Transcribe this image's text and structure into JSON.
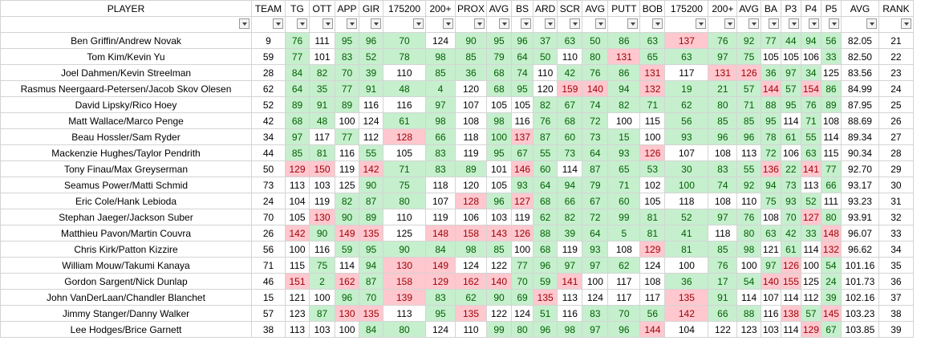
{
  "columns": [
    "PLAYER",
    "TEAM",
    "TG",
    "OTT",
    "APP",
    "GIR",
    "175200",
    "200+",
    "PROX",
    "AVG",
    "BS",
    "ARD",
    "SCR",
    "AVG",
    "PUTT",
    "BOB",
    "175200",
    "200+",
    "AVG",
    "BA",
    "P3",
    "P4",
    "P5",
    "AVG",
    "RANK"
  ],
  "palette": {
    "green": {
      "fill": "#c6efce",
      "text": "#006100"
    },
    "red": {
      "fill": "#ffc7ce",
      "text": "#9c0006"
    }
  },
  "rows": [
    {
      "cells": [
        "Ben Griffin/Andrew Novak",
        9,
        76,
        111,
        95,
        96,
        70,
        124,
        90,
        95,
        96,
        37,
        63,
        50,
        86,
        63,
        137,
        76,
        92,
        77,
        44,
        94,
        56,
        "82.05",
        21
      ],
      "fills": [
        null,
        null,
        "green",
        null,
        "green",
        "green",
        "green",
        null,
        "green",
        "green",
        "green",
        "green",
        "green",
        "green",
        "green",
        "green",
        "red",
        "green",
        "green",
        "green",
        "green",
        "green",
        "green",
        null,
        null
      ]
    },
    {
      "cells": [
        "Tom Kim/Kevin Yu",
        59,
        77,
        101,
        83,
        52,
        78,
        98,
        85,
        79,
        64,
        50,
        110,
        80,
        131,
        65,
        63,
        97,
        75,
        105,
        105,
        106,
        33,
        "82.50",
        22
      ],
      "fills": [
        null,
        null,
        "green",
        null,
        "green",
        "green",
        "green",
        "green",
        "green",
        "green",
        "green",
        "green",
        null,
        "green",
        "red",
        "green",
        "green",
        "green",
        "green",
        null,
        null,
        null,
        "green",
        null,
        null
      ]
    },
    {
      "cells": [
        "Joel Dahmen/Kevin Streelman",
        28,
        84,
        82,
        70,
        39,
        110,
        85,
        36,
        68,
        74,
        110,
        42,
        76,
        86,
        131,
        117,
        131,
        126,
        36,
        97,
        34,
        125,
        "83.56",
        23
      ],
      "fills": [
        null,
        null,
        "green",
        "green",
        "green",
        "green",
        null,
        "green",
        "green",
        "green",
        "green",
        null,
        "green",
        "green",
        "green",
        "red",
        null,
        "red",
        "red",
        "green",
        "green",
        "green",
        null,
        null,
        null
      ]
    },
    {
      "cells": [
        "Rasmus Neergaard-Petersen/Jacob Skov Olesen",
        62,
        64,
        35,
        77,
        91,
        48,
        4,
        120,
        68,
        95,
        120,
        159,
        140,
        94,
        132,
        19,
        21,
        57,
        144,
        57,
        154,
        86,
        "84.99",
        24
      ],
      "fills": [
        null,
        null,
        "green",
        "green",
        "green",
        "green",
        "green",
        "green",
        null,
        "green",
        "green",
        null,
        "red",
        "red",
        "green",
        "red",
        "green",
        "green",
        "green",
        "red",
        "green",
        "red",
        "green",
        null,
        null
      ]
    },
    {
      "cells": [
        "David Lipsky/Rico Hoey",
        52,
        89,
        91,
        89,
        116,
        116,
        97,
        107,
        105,
        105,
        82,
        67,
        74,
        82,
        71,
        62,
        80,
        71,
        88,
        95,
        76,
        89,
        "87.95",
        25
      ],
      "fills": [
        null,
        null,
        "green",
        "green",
        "green",
        null,
        null,
        "green",
        null,
        null,
        null,
        "green",
        "green",
        "green",
        "green",
        "green",
        "green",
        "green",
        "green",
        "green",
        "green",
        "green",
        "green",
        null,
        null
      ]
    },
    {
      "cells": [
        "Matt Wallace/Marco Penge",
        42,
        68,
        48,
        100,
        124,
        61,
        98,
        108,
        98,
        116,
        76,
        68,
        72,
        100,
        115,
        56,
        85,
        85,
        95,
        114,
        71,
        108,
        "88.69",
        26
      ],
      "fills": [
        null,
        null,
        "green",
        "green",
        null,
        null,
        "green",
        "green",
        null,
        "green",
        null,
        "green",
        "green",
        "green",
        null,
        null,
        "green",
        "green",
        "green",
        "green",
        null,
        "green",
        null,
        null,
        null
      ]
    },
    {
      "cells": [
        "Beau Hossler/Sam Ryder",
        34,
        97,
        117,
        77,
        112,
        128,
        66,
        118,
        100,
        137,
        87,
        60,
        73,
        15,
        100,
        93,
        96,
        96,
        78,
        61,
        55,
        114,
        "89.34",
        27
      ],
      "fills": [
        null,
        null,
        "green",
        null,
        "green",
        null,
        "red",
        "green",
        null,
        "green",
        "red",
        "green",
        "green",
        "green",
        "green",
        null,
        "green",
        "green",
        "green",
        "green",
        "green",
        "green",
        null,
        null,
        null
      ]
    },
    {
      "cells": [
        "Mackenzie Hughes/Taylor Pendrith",
        44,
        85,
        81,
        116,
        55,
        105,
        83,
        119,
        95,
        67,
        55,
        73,
        64,
        93,
        126,
        107,
        108,
        113,
        72,
        106,
        63,
        115,
        "90.34",
        28
      ],
      "fills": [
        null,
        null,
        "green",
        "green",
        null,
        "green",
        null,
        "green",
        null,
        "green",
        "green",
        "green",
        "green",
        "green",
        "green",
        "red",
        null,
        null,
        null,
        "green",
        null,
        "green",
        null,
        null,
        null
      ]
    },
    {
      "cells": [
        "Tony Finau/Max Greyserman",
        50,
        129,
        150,
        119,
        142,
        71,
        83,
        89,
        101,
        146,
        60,
        114,
        87,
        65,
        53,
        30,
        83,
        55,
        136,
        22,
        141,
        77,
        "92.70",
        29
      ],
      "fills": [
        null,
        null,
        "red",
        "red",
        null,
        "red",
        "green",
        "green",
        "green",
        null,
        "red",
        "green",
        null,
        "green",
        "green",
        "green",
        "green",
        "green",
        "green",
        "red",
        "green",
        "red",
        "green",
        null,
        null
      ]
    },
    {
      "cells": [
        "Seamus Power/Matti Schmid",
        73,
        113,
        103,
        125,
        90,
        75,
        118,
        120,
        105,
        93,
        64,
        94,
        79,
        71,
        102,
        100,
        74,
        92,
        94,
        73,
        113,
        66,
        "93.17",
        30
      ],
      "fills": [
        null,
        null,
        null,
        null,
        null,
        "green",
        "green",
        null,
        null,
        null,
        "green",
        "green",
        "green",
        "green",
        "green",
        null,
        "green",
        "green",
        "green",
        "green",
        "green",
        null,
        "green",
        null,
        null
      ]
    },
    {
      "cells": [
        "Eric Cole/Hank Lebioda",
        24,
        104,
        119,
        82,
        87,
        80,
        107,
        128,
        96,
        127,
        68,
        66,
        67,
        60,
        105,
        118,
        108,
        110,
        75,
        93,
        52,
        111,
        "93.23",
        31
      ],
      "fills": [
        null,
        null,
        null,
        null,
        "green",
        "green",
        "green",
        null,
        "red",
        "green",
        "red",
        "green",
        "green",
        "green",
        "green",
        null,
        null,
        null,
        null,
        "green",
        "green",
        "green",
        null,
        null,
        null
      ]
    },
    {
      "cells": [
        "Stephan Jaeger/Jackson Suber",
        70,
        105,
        130,
        90,
        89,
        110,
        119,
        106,
        103,
        119,
        62,
        82,
        72,
        99,
        81,
        52,
        97,
        76,
        108,
        70,
        127,
        80,
        "93.91",
        32
      ],
      "fills": [
        null,
        null,
        null,
        "red",
        "green",
        "green",
        null,
        null,
        null,
        null,
        null,
        "green",
        "green",
        "green",
        "green",
        "green",
        "green",
        "green",
        "green",
        null,
        "green",
        "red",
        "green",
        null,
        null
      ]
    },
    {
      "cells": [
        "Matthieu Pavon/Martin Couvra",
        26,
        142,
        90,
        149,
        135,
        125,
        148,
        158,
        143,
        126,
        88,
        39,
        64,
        5,
        81,
        41,
        118,
        80,
        63,
        42,
        33,
        148,
        "96.07",
        33
      ],
      "fills": [
        null,
        null,
        "red",
        "green",
        "red",
        "red",
        null,
        "red",
        "red",
        "red",
        "red",
        "green",
        "green",
        "green",
        "green",
        "green",
        "green",
        null,
        "green",
        "green",
        "green",
        "green",
        "red",
        null,
        null
      ]
    },
    {
      "cells": [
        "Chris Kirk/Patton Kizzire",
        56,
        100,
        116,
        59,
        95,
        90,
        84,
        98,
        85,
        100,
        68,
        119,
        93,
        108,
        129,
        81,
        85,
        98,
        121,
        61,
        114,
        132,
        "96.62",
        34
      ],
      "fills": [
        null,
        null,
        null,
        null,
        "green",
        "green",
        "green",
        "green",
        "green",
        "green",
        null,
        "green",
        null,
        "green",
        null,
        "red",
        "green",
        "green",
        "green",
        null,
        "green",
        null,
        "red",
        null,
        null
      ]
    },
    {
      "cells": [
        "William Mouw/Takumi Kanaya",
        71,
        115,
        75,
        114,
        94,
        130,
        149,
        124,
        122,
        77,
        96,
        97,
        97,
        62,
        124,
        100,
        76,
        100,
        97,
        126,
        100,
        54,
        "101.16",
        35
      ],
      "fills": [
        null,
        null,
        null,
        "green",
        null,
        "green",
        "red",
        "red",
        null,
        null,
        "green",
        "green",
        "green",
        "green",
        "green",
        null,
        null,
        "green",
        null,
        "green",
        "red",
        null,
        "green",
        null,
        null
      ]
    },
    {
      "cells": [
        "Gordon Sargent/Nick Dunlap",
        46,
        151,
        2,
        162,
        87,
        158,
        129,
        162,
        140,
        70,
        59,
        141,
        100,
        117,
        108,
        36,
        17,
        54,
        140,
        155,
        125,
        24,
        "101.73",
        36
      ],
      "fills": [
        null,
        null,
        "red",
        "green",
        "red",
        "green",
        "red",
        "red",
        "red",
        "red",
        "green",
        "green",
        "red",
        null,
        null,
        null,
        "green",
        "green",
        "green",
        "red",
        "red",
        null,
        "green",
        null,
        null
      ]
    },
    {
      "cells": [
        "John VanDerLaan/Chandler Blanchet",
        15,
        121,
        100,
        96,
        70,
        139,
        83,
        62,
        90,
        69,
        135,
        113,
        124,
        117,
        117,
        135,
        91,
        114,
        107,
        114,
        112,
        39,
        "102.16",
        37
      ],
      "fills": [
        null,
        null,
        null,
        null,
        "green",
        "green",
        "red",
        "green",
        "green",
        "green",
        "green",
        "red",
        null,
        null,
        null,
        null,
        "red",
        "green",
        null,
        null,
        null,
        null,
        "green",
        null,
        null
      ]
    },
    {
      "cells": [
        "Jimmy Stanger/Danny Walker",
        57,
        123,
        87,
        130,
        135,
        113,
        95,
        135,
        122,
        124,
        51,
        116,
        83,
        70,
        56,
        142,
        66,
        88,
        116,
        138,
        57,
        145,
        "103.23",
        38
      ],
      "fills": [
        null,
        null,
        null,
        "green",
        "red",
        "red",
        null,
        "green",
        "red",
        null,
        null,
        "green",
        null,
        "green",
        "green",
        "green",
        "red",
        "green",
        "green",
        null,
        "red",
        "green",
        "red",
        null,
        null
      ]
    },
    {
      "cells": [
        "Lee Hodges/Brice Garnett",
        38,
        113,
        103,
        100,
        84,
        80,
        124,
        110,
        99,
        80,
        96,
        98,
        97,
        96,
        144,
        104,
        122,
        123,
        103,
        114,
        129,
        67,
        "103.85",
        39
      ],
      "fills": [
        null,
        null,
        null,
        null,
        null,
        "green",
        "green",
        null,
        null,
        "green",
        "green",
        "green",
        "green",
        "green",
        "green",
        "red",
        null,
        null,
        null,
        null,
        null,
        "red",
        "green",
        null,
        null
      ]
    }
  ]
}
